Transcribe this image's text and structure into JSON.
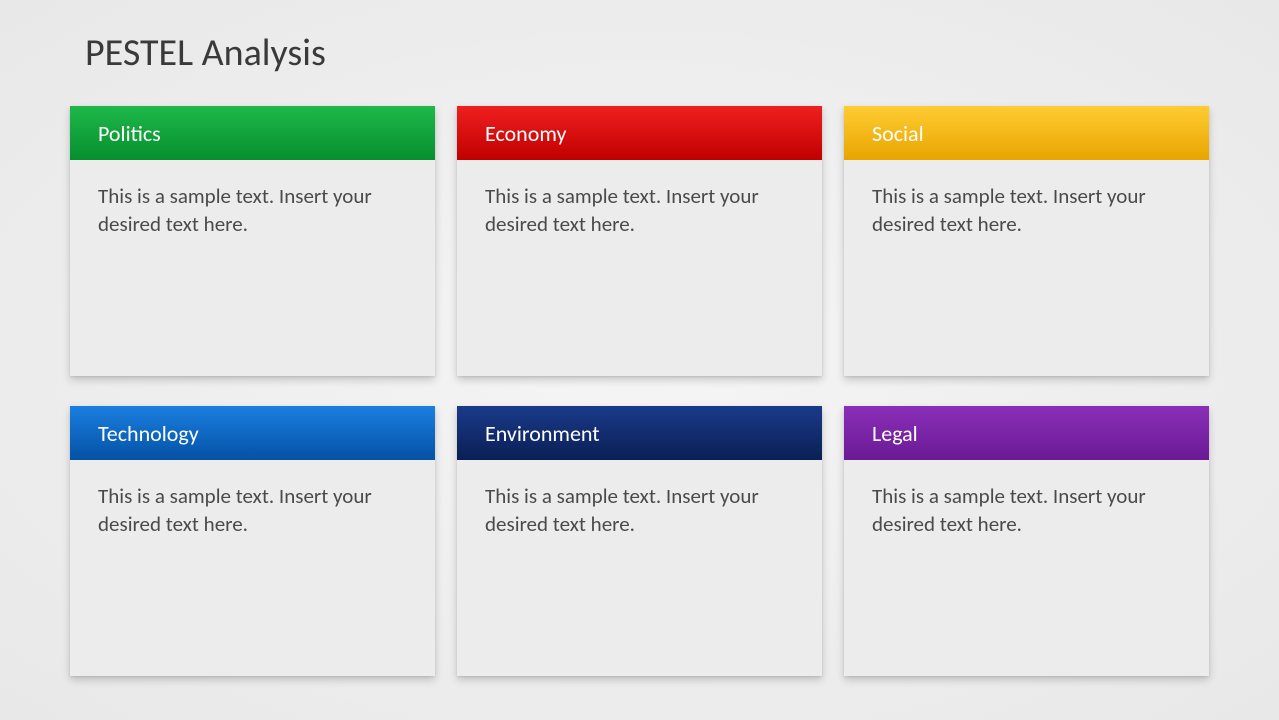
{
  "title": "PESTEL Analysis",
  "layout": {
    "columns": 3,
    "rows": 2,
    "background": "radial-gradient(#f5f5f5, #e8e8e8)",
    "card_background": "#ececec",
    "body_text_color": "#4a4a4a",
    "header_text_color": "#ffffff",
    "title_fontsize": 38,
    "header_fontsize": 22,
    "body_fontsize": 21
  },
  "cards": [
    {
      "label": "Politics",
      "body": "This is a sample text. Insert your desired text here.",
      "header_gradient_top": "#1fb84a",
      "header_gradient_bottom": "#068f2e"
    },
    {
      "label": "Economy",
      "body": "This is a sample text. Insert your desired text here.",
      "header_gradient_top": "#f01f1f",
      "header_gradient_bottom": "#c00000"
    },
    {
      "label": "Social",
      "body": "This is a sample text. Insert your desired text here.",
      "header_gradient_top": "#ffcc33",
      "header_gradient_bottom": "#e8a500"
    },
    {
      "label": "Technology",
      "body": "This is a sample text. Insert your desired text here.",
      "header_gradient_top": "#1b7fe0",
      "header_gradient_bottom": "#0452a5"
    },
    {
      "label": "Environment",
      "body": "This is a sample text. Insert your desired text here.",
      "header_gradient_top": "#1a3a8a",
      "header_gradient_bottom": "#0a1f55"
    },
    {
      "label": "Legal",
      "body": "This is a sample text. Insert your desired text here.",
      "header_gradient_top": "#8a2fb8",
      "header_gradient_bottom": "#6a1a95"
    }
  ]
}
